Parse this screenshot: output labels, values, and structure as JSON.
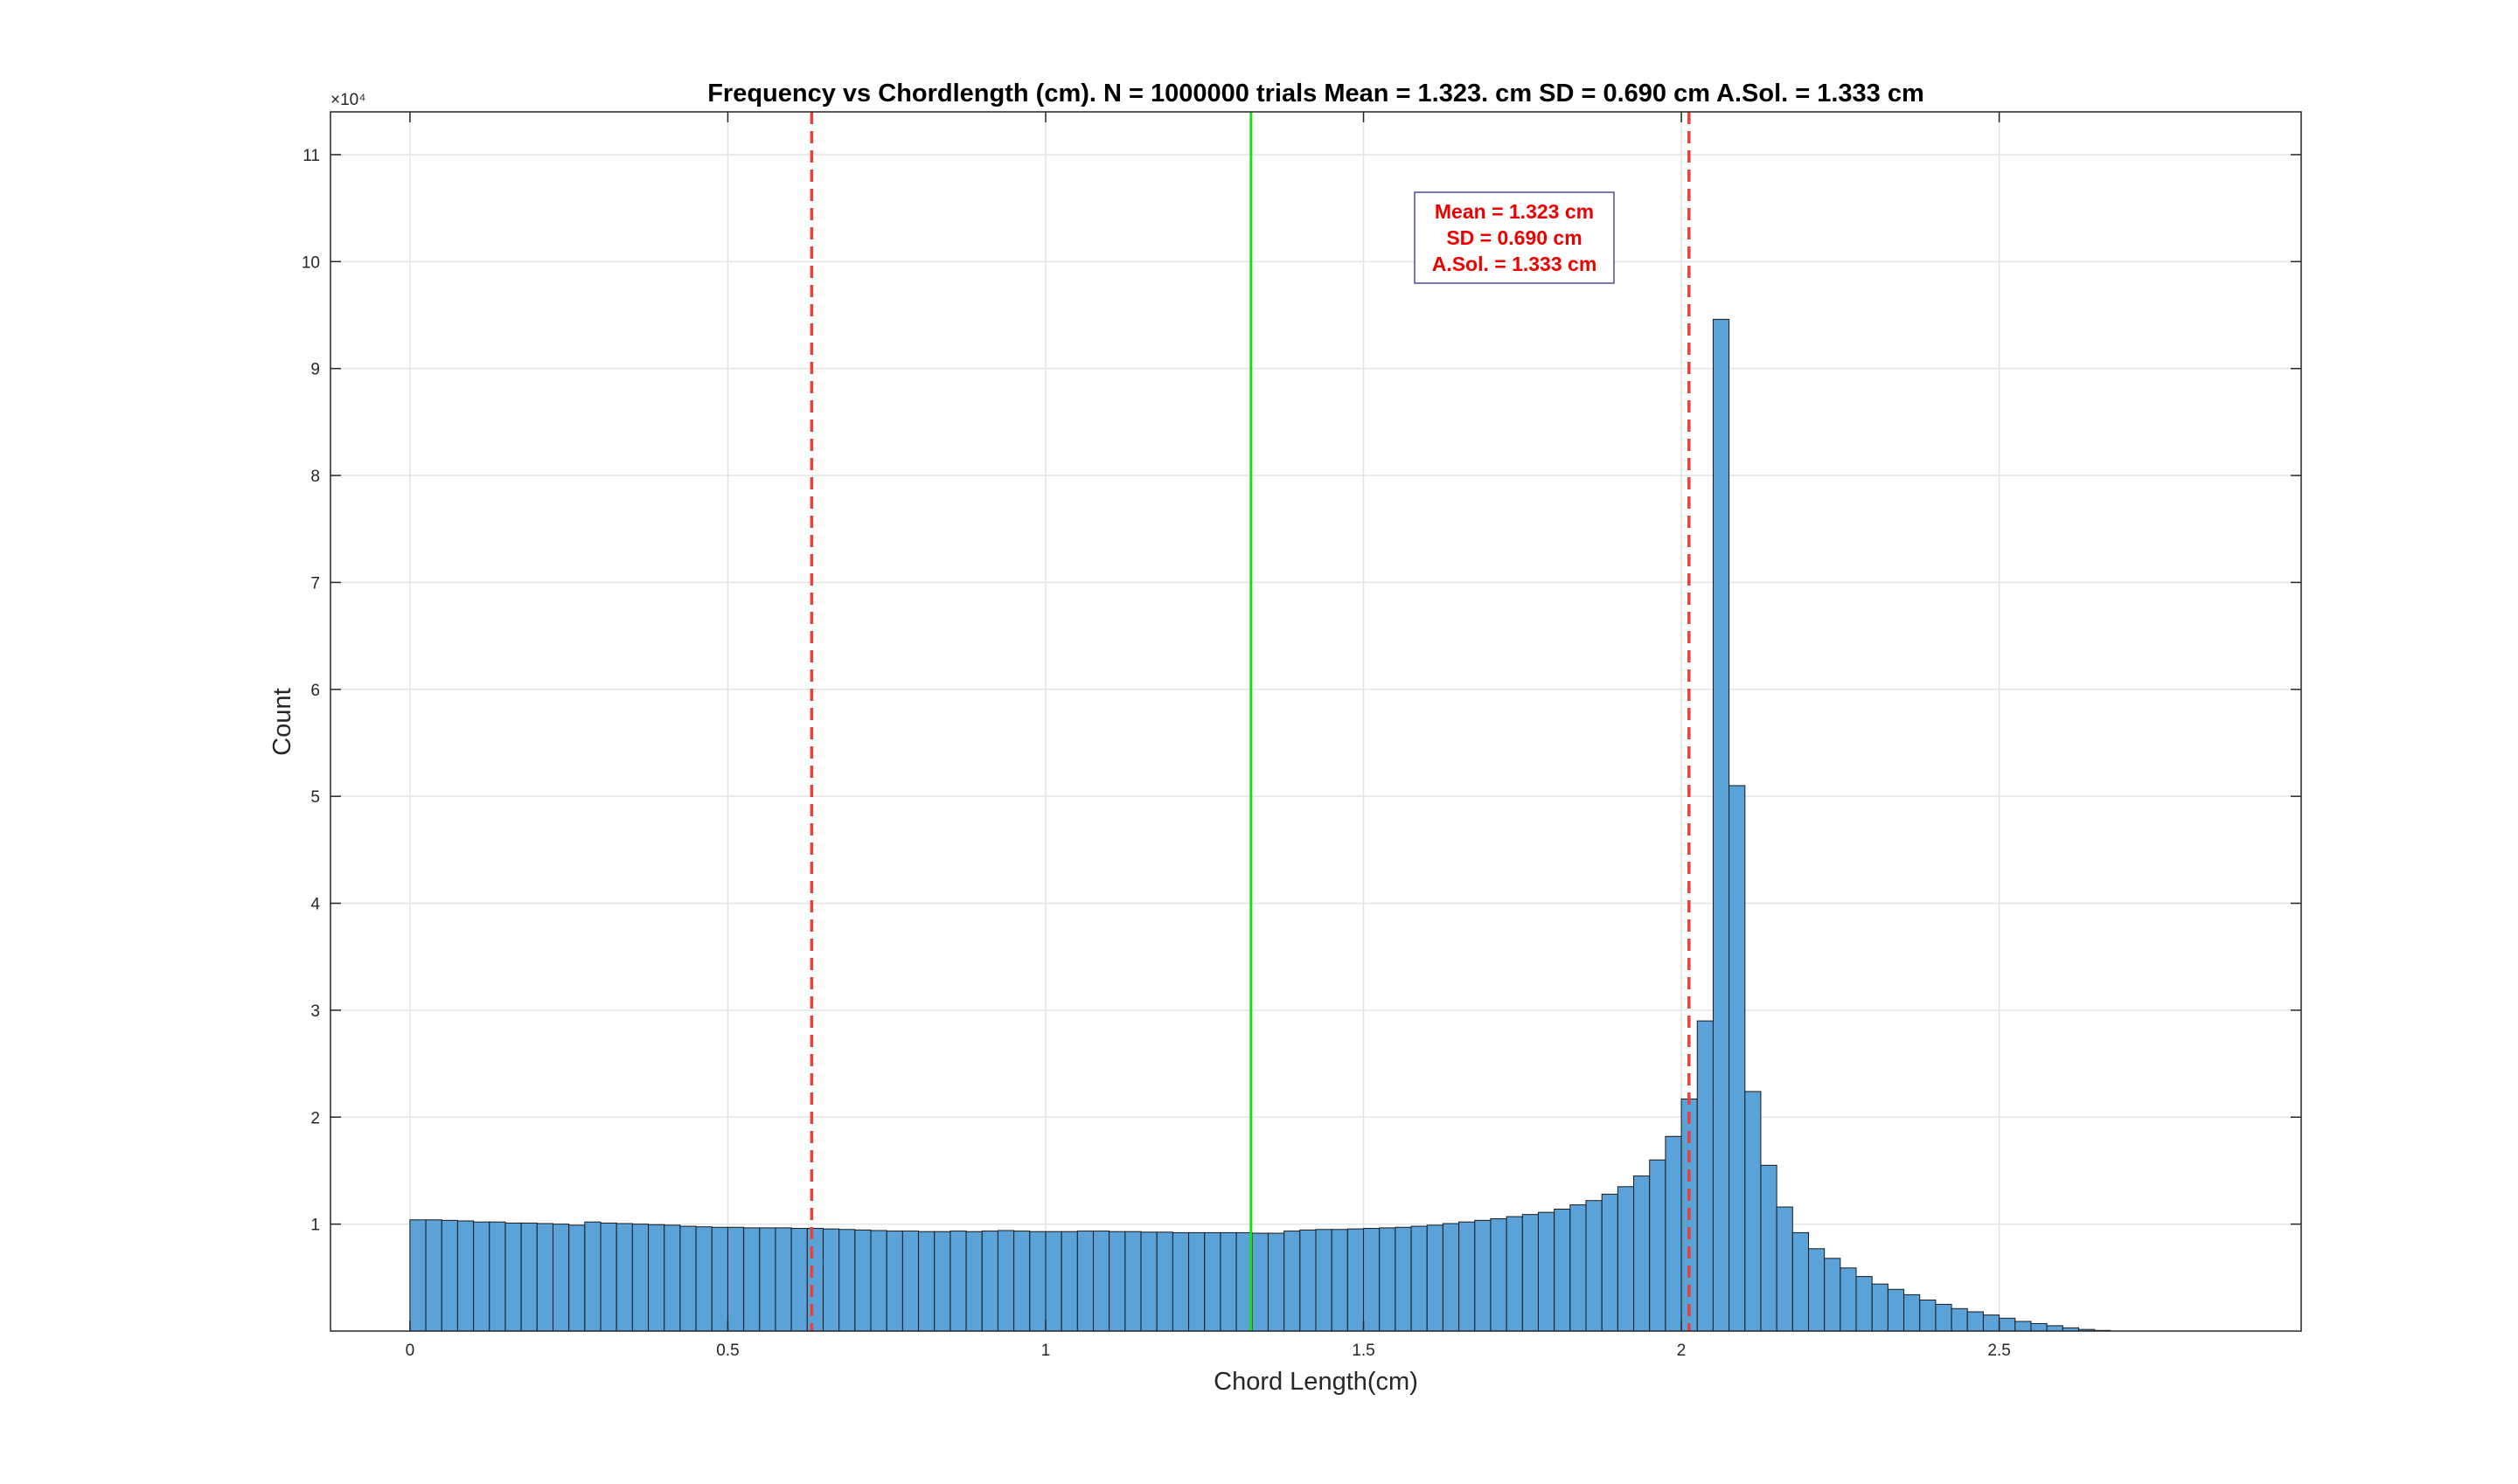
{
  "chart_data": {
    "type": "bar",
    "title": "Frequency vs Chordlength (cm). N = 1000000 trials  Mean = 1.323. cm  SD = 0.690 cm A.Sol. = 1.333 cm",
    "xlabel": "Chord Length(cm)",
    "ylabel": "Count",
    "xlim": [
      -0.125,
      2.975
    ],
    "ylim": [
      0,
      114000
    ],
    "x_ticks": [
      0,
      0.5,
      1,
      1.5,
      2,
      2.5
    ],
    "x_tick_labels": [
      "0",
      "0.5",
      "1",
      "1.5",
      "2",
      "2.5"
    ],
    "y_ticks": [
      10000,
      20000,
      30000,
      40000,
      50000,
      60000,
      70000,
      80000,
      90000,
      100000,
      110000
    ],
    "y_tick_labels": [
      "1",
      "2",
      "3",
      "4",
      "5",
      "6",
      "7",
      "8",
      "9",
      "10",
      "11"
    ],
    "y_exponent_label": "×10⁴",
    "grid": true,
    "bin_start": 0,
    "bin_width": 0.025,
    "counts": [
      10400,
      10400,
      10350,
      10300,
      10200,
      10200,
      10100,
      10100,
      10050,
      10000,
      9900,
      10200,
      10100,
      10050,
      10000,
      9950,
      9900,
      9800,
      9750,
      9700,
      9700,
      9650,
      9650,
      9650,
      9600,
      9600,
      9550,
      9500,
      9450,
      9400,
      9350,
      9350,
      9300,
      9300,
      9350,
      9300,
      9350,
      9400,
      9350,
      9300,
      9300,
      9300,
      9350,
      9350,
      9300,
      9300,
      9250,
      9250,
      9200,
      9200,
      9200,
      9200,
      9200,
      9150,
      9150,
      9350,
      9450,
      9500,
      9500,
      9550,
      9600,
      9650,
      9700,
      9800,
      9900,
      10050,
      10200,
      10350,
      10500,
      10700,
      10900,
      11100,
      11400,
      11800,
      12200,
      12800,
      13500,
      14500,
      16000,
      18200,
      21700,
      29000,
      94600,
      51000,
      22400,
      15500,
      11600,
      9200,
      7700,
      6800,
      5900,
      5100,
      4400,
      3900,
      3400,
      2900,
      2500,
      2100,
      1800,
      1500,
      1200,
      900,
      700,
      500,
      300,
      150,
      60
    ]
  },
  "annotations": {
    "lines": [
      {
        "x": 0.632,
        "color": "#e8403a",
        "style": "dashed"
      },
      {
        "x": 1.323,
        "color": "#1ddc1d",
        "style": "solid"
      },
      {
        "x": 2.012,
        "color": "#e8403a",
        "style": "dashed"
      }
    ],
    "textbox": {
      "lines": [
        "Mean = 1.323 cm",
        "SD = 0.690 cm",
        "A.Sol. = 1.333 cm"
      ],
      "text_color": "#ee0000",
      "border_color": "#4a4aa8"
    }
  },
  "colors": {
    "bar_fill": "#5aa2d8",
    "bar_edge": "#1a1a1a",
    "grid": "#e4e4e4",
    "axis": "#262626"
  }
}
